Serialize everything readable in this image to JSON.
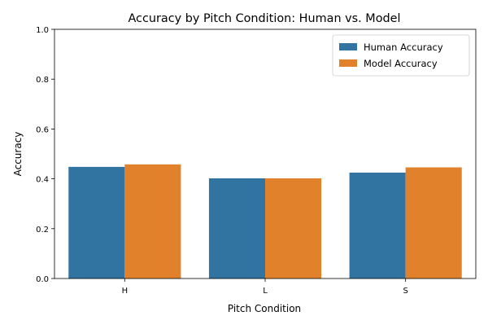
{
  "chart_data": {
    "type": "bar",
    "title": "Accuracy by Pitch Condition: Human vs. Model",
    "xlabel": "Pitch Condition",
    "ylabel": "Accuracy",
    "categories": [
      "H",
      "L",
      "S"
    ],
    "ylim": [
      0,
      1.0
    ],
    "yticks": [
      0.0,
      0.2,
      0.4,
      0.6,
      0.8,
      1.0
    ],
    "ytick_labels": [
      "0.0",
      "0.2",
      "0.4",
      "0.6",
      "0.8",
      "1.0"
    ],
    "grid": false,
    "legend_position": "top-right",
    "series": [
      {
        "name": "Human Accuracy",
        "values": [
          0.448,
          0.402,
          0.425
        ],
        "color": "#3274a1"
      },
      {
        "name": "Model Accuracy",
        "values": [
          0.458,
          0.402,
          0.446
        ],
        "color": "#e1812c"
      }
    ]
  }
}
